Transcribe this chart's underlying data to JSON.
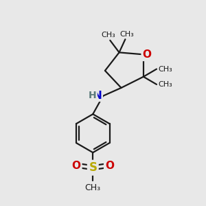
{
  "bg_color": "#e8e8e8",
  "bond_color": "#1a1a1a",
  "O_color": "#cc0000",
  "N_color": "#0000cc",
  "S_color": "#b8a800",
  "H_color": "#5a7a7a",
  "line_width": 1.6,
  "font_size_atom": 11,
  "font_size_label": 8,
  "fig_size": [
    3.0,
    3.0
  ],
  "dpi": 100,
  "xlim": [
    0,
    10
  ],
  "ylim": [
    0,
    10
  ]
}
